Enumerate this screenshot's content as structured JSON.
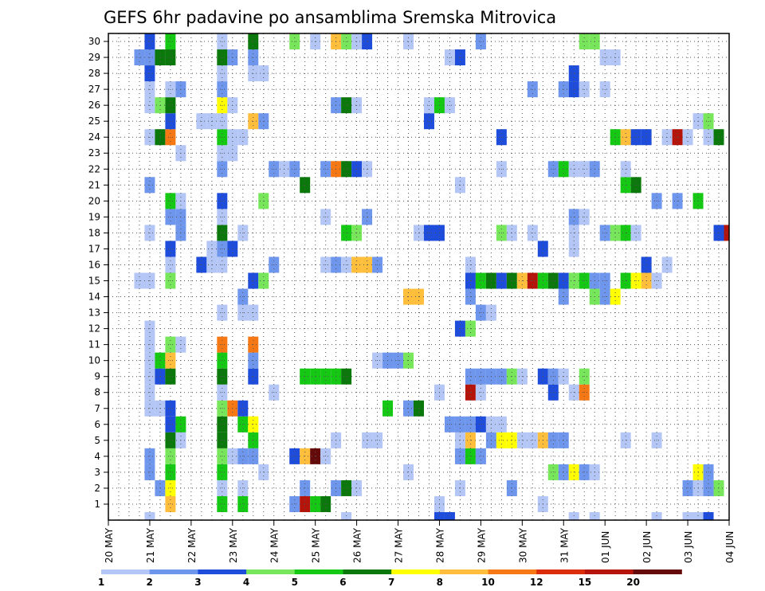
{
  "chart_data": {
    "type": "heatmap",
    "title": "GEFS 6hr padavine po ansamblima Sremska Mitrovica",
    "x_tick_labels": [
      "20 MAY",
      "21 MAY",
      "22 MAY",
      "23 MAY",
      "24 MAY",
      "25 MAY",
      "26 MAY",
      "27 MAY",
      "28 MAY",
      "29 MAY",
      "30 MAY",
      "31 MAY",
      "01 JUN",
      "02 JUN",
      "03 JUN",
      "04 JUN"
    ],
    "x_range_steps": [
      0,
      60
    ],
    "y_tick_labels": [
      1,
      2,
      3,
      4,
      5,
      6,
      7,
      8,
      9,
      10,
      11,
      12,
      13,
      14,
      15,
      16,
      17,
      18,
      19,
      20,
      21,
      22,
      23,
      24,
      25,
      26,
      27,
      28,
      29,
      30
    ],
    "y_range_members": [
      0,
      30
    ],
    "grid": true,
    "colorbar": {
      "levels": [
        1,
        2,
        3,
        4,
        5,
        6,
        7,
        8,
        10,
        12,
        15,
        20
      ],
      "labels": [
        "1",
        "2",
        "3",
        "4",
        "5",
        "6",
        "7",
        "8",
        "10",
        "12",
        "15",
        "20"
      ],
      "colors": [
        "#b4c6f5",
        "#6e96ed",
        "#1f4ddb",
        "#78e65a",
        "#14c814",
        "#0a780a",
        "#ffff00",
        "#ffbe3c",
        "#f57814",
        "#dc2d0a",
        "#b4140a",
        "#640a0a"
      ]
    },
    "cells": [
      [
        0,
        4,
        1
      ],
      [
        0,
        23,
        1
      ],
      [
        0,
        32,
        3
      ],
      [
        0,
        33,
        3
      ],
      [
        0,
        45,
        1
      ],
      [
        0,
        47,
        1
      ],
      [
        0,
        53,
        1
      ],
      [
        0,
        56,
        1
      ],
      [
        0,
        57,
        1
      ],
      [
        0,
        58,
        3
      ],
      [
        1,
        6,
        8
      ],
      [
        1,
        11,
        5
      ],
      [
        1,
        13,
        5
      ],
      [
        1,
        18,
        2
      ],
      [
        1,
        19,
        11
      ],
      [
        1,
        20,
        5
      ],
      [
        1,
        21,
        6
      ],
      [
        1,
        32,
        1
      ],
      [
        1,
        42,
        1
      ],
      [
        2,
        5,
        2
      ],
      [
        2,
        6,
        7
      ],
      [
        2,
        11,
        1
      ],
      [
        2,
        13,
        1
      ],
      [
        2,
        19,
        2
      ],
      [
        2,
        22,
        2
      ],
      [
        2,
        23,
        6
      ],
      [
        2,
        24,
        1
      ],
      [
        2,
        34,
        1
      ],
      [
        2,
        39,
        2
      ],
      [
        2,
        56,
        2
      ],
      [
        2,
        57,
        1
      ],
      [
        2,
        58,
        2
      ],
      [
        2,
        59,
        4
      ],
      [
        3,
        4,
        2
      ],
      [
        3,
        6,
        5
      ],
      [
        3,
        11,
        5
      ],
      [
        3,
        15,
        1
      ],
      [
        3,
        29,
        1
      ],
      [
        3,
        43,
        4
      ],
      [
        3,
        44,
        2
      ],
      [
        3,
        45,
        7
      ],
      [
        3,
        46,
        2
      ],
      [
        3,
        47,
        1
      ],
      [
        3,
        57,
        7
      ],
      [
        3,
        58,
        2
      ],
      [
        4,
        4,
        2
      ],
      [
        4,
        6,
        4
      ],
      [
        4,
        11,
        4
      ],
      [
        4,
        12,
        1
      ],
      [
        4,
        13,
        2
      ],
      [
        4,
        14,
        2
      ],
      [
        4,
        18,
        3
      ],
      [
        4,
        19,
        8
      ],
      [
        4,
        20,
        12
      ],
      [
        4,
        21,
        1
      ],
      [
        4,
        34,
        2
      ],
      [
        4,
        35,
        5
      ],
      [
        4,
        36,
        2
      ],
      [
        5,
        6,
        6
      ],
      [
        5,
        7,
        1
      ],
      [
        5,
        11,
        6
      ],
      [
        5,
        14,
        5
      ],
      [
        5,
        22,
        1
      ],
      [
        5,
        25,
        1
      ],
      [
        5,
        26,
        1
      ],
      [
        5,
        34,
        1
      ],
      [
        5,
        35,
        8
      ],
      [
        5,
        37,
        2
      ],
      [
        5,
        38,
        7
      ],
      [
        5,
        39,
        7
      ],
      [
        5,
        40,
        1
      ],
      [
        5,
        41,
        1
      ],
      [
        5,
        42,
        8
      ],
      [
        5,
        43,
        2
      ],
      [
        5,
        44,
        2
      ],
      [
        5,
        50,
        1
      ],
      [
        5,
        53,
        1
      ],
      [
        6,
        6,
        3
      ],
      [
        6,
        7,
        5
      ],
      [
        6,
        11,
        6
      ],
      [
        6,
        13,
        5
      ],
      [
        6,
        14,
        7
      ],
      [
        6,
        33,
        2
      ],
      [
        6,
        34,
        2
      ],
      [
        6,
        35,
        2
      ],
      [
        6,
        36,
        3
      ],
      [
        6,
        37,
        1
      ],
      [
        6,
        38,
        1
      ],
      [
        7,
        4,
        1
      ],
      [
        7,
        5,
        1
      ],
      [
        7,
        6,
        3
      ],
      [
        7,
        11,
        4
      ],
      [
        7,
        12,
        9
      ],
      [
        7,
        13,
        3
      ],
      [
        7,
        27,
        5
      ],
      [
        7,
        29,
        2
      ],
      [
        7,
        30,
        6
      ],
      [
        8,
        4,
        1
      ],
      [
        8,
        11,
        1
      ],
      [
        8,
        16,
        1
      ],
      [
        8,
        32,
        1
      ],
      [
        8,
        35,
        11
      ],
      [
        8,
        36,
        1
      ],
      [
        8,
        43,
        3
      ],
      [
        8,
        45,
        1
      ],
      [
        8,
        46,
        9
      ],
      [
        9,
        4,
        1
      ],
      [
        9,
        5,
        3
      ],
      [
        9,
        6,
        6
      ],
      [
        9,
        11,
        6
      ],
      [
        9,
        14,
        3
      ],
      [
        9,
        19,
        5
      ],
      [
        9,
        20,
        5
      ],
      [
        9,
        21,
        5
      ],
      [
        9,
        22,
        5
      ],
      [
        9,
        23,
        6
      ],
      [
        9,
        35,
        2
      ],
      [
        9,
        36,
        2
      ],
      [
        9,
        37,
        2
      ],
      [
        9,
        38,
        2
      ],
      [
        9,
        39,
        4
      ],
      [
        9,
        40,
        1
      ],
      [
        9,
        42,
        3
      ],
      [
        9,
        43,
        2
      ],
      [
        9,
        44,
        1
      ],
      [
        9,
        46,
        4
      ],
      [
        10,
        4,
        1
      ],
      [
        10,
        5,
        5
      ],
      [
        10,
        6,
        8
      ],
      [
        10,
        11,
        5
      ],
      [
        10,
        14,
        2
      ],
      [
        10,
        26,
        1
      ],
      [
        10,
        27,
        2
      ],
      [
        10,
        28,
        2
      ],
      [
        10,
        29,
        4
      ],
      [
        11,
        4,
        1
      ],
      [
        11,
        6,
        4
      ],
      [
        11,
        7,
        1
      ],
      [
        11,
        11,
        9
      ],
      [
        11,
        14,
        9
      ],
      [
        12,
        4,
        1
      ],
      [
        12,
        34,
        3
      ],
      [
        12,
        35,
        4
      ],
      [
        13,
        11,
        1
      ],
      [
        13,
        13,
        1
      ],
      [
        13,
        14,
        1
      ],
      [
        13,
        36,
        2
      ],
      [
        13,
        37,
        1
      ],
      [
        14,
        13,
        2
      ],
      [
        14,
        29,
        8
      ],
      [
        14,
        30,
        8
      ],
      [
        14,
        35,
        2
      ],
      [
        14,
        44,
        2
      ],
      [
        14,
        47,
        4
      ],
      [
        14,
        48,
        2
      ],
      [
        14,
        49,
        7
      ],
      [
        15,
        3,
        1
      ],
      [
        15,
        4,
        1
      ],
      [
        15,
        6,
        4
      ],
      [
        15,
        14,
        3
      ],
      [
        15,
        15,
        4
      ],
      [
        15,
        35,
        3
      ],
      [
        15,
        36,
        5
      ],
      [
        15,
        37,
        6
      ],
      [
        15,
        38,
        3
      ],
      [
        15,
        39,
        6
      ],
      [
        15,
        40,
        8
      ],
      [
        15,
        41,
        11
      ],
      [
        15,
        42,
        5
      ],
      [
        15,
        43,
        6
      ],
      [
        15,
        44,
        3
      ],
      [
        15,
        45,
        4
      ],
      [
        15,
        46,
        5
      ],
      [
        15,
        47,
        2
      ],
      [
        15,
        48,
        2
      ],
      [
        15,
        50,
        5
      ],
      [
        15,
        51,
        7
      ],
      [
        15,
        52,
        8
      ],
      [
        15,
        53,
        1
      ],
      [
        16,
        6,
        1
      ],
      [
        16,
        9,
        3
      ],
      [
        16,
        10,
        1
      ],
      [
        16,
        11,
        1
      ],
      [
        16,
        16,
        2
      ],
      [
        16,
        21,
        1
      ],
      [
        16,
        22,
        2
      ],
      [
        16,
        23,
        1
      ],
      [
        16,
        24,
        8
      ],
      [
        16,
        25,
        8
      ],
      [
        16,
        26,
        2
      ],
      [
        16,
        35,
        1
      ],
      [
        16,
        52,
        3
      ],
      [
        16,
        54,
        1
      ],
      [
        17,
        6,
        3
      ],
      [
        17,
        10,
        1
      ],
      [
        17,
        11,
        2
      ],
      [
        17,
        12,
        3
      ],
      [
        17,
        42,
        3
      ],
      [
        17,
        45,
        1
      ],
      [
        18,
        4,
        1
      ],
      [
        18,
        7,
        2
      ],
      [
        18,
        11,
        6
      ],
      [
        18,
        13,
        1
      ],
      [
        18,
        23,
        5
      ],
      [
        18,
        24,
        4
      ],
      [
        18,
        30,
        1
      ],
      [
        18,
        31,
        3
      ],
      [
        18,
        32,
        3
      ],
      [
        18,
        38,
        4
      ],
      [
        18,
        39,
        1
      ],
      [
        18,
        41,
        1
      ],
      [
        18,
        45,
        1
      ],
      [
        18,
        48,
        2
      ],
      [
        18,
        49,
        4
      ],
      [
        18,
        50,
        5
      ],
      [
        18,
        51,
        1
      ],
      [
        18,
        59,
        3
      ],
      [
        18,
        60,
        11
      ],
      [
        19,
        6,
        2
      ],
      [
        19,
        7,
        2
      ],
      [
        19,
        11,
        1
      ],
      [
        19,
        21,
        1
      ],
      [
        19,
        25,
        2
      ],
      [
        19,
        45,
        2
      ],
      [
        19,
        46,
        1
      ],
      [
        20,
        6,
        5
      ],
      [
        20,
        7,
        1
      ],
      [
        20,
        11,
        3
      ],
      [
        20,
        15,
        4
      ],
      [
        20,
        53,
        2
      ],
      [
        20,
        55,
        2
      ],
      [
        20,
        57,
        5
      ],
      [
        21,
        4,
        2
      ],
      [
        21,
        19,
        6
      ],
      [
        21,
        34,
        1
      ],
      [
        21,
        50,
        5
      ],
      [
        21,
        51,
        6
      ],
      [
        22,
        11,
        2
      ],
      [
        22,
        16,
        2
      ],
      [
        22,
        17,
        1
      ],
      [
        22,
        18,
        2
      ],
      [
        22,
        21,
        2
      ],
      [
        22,
        22,
        9
      ],
      [
        22,
        23,
        6
      ],
      [
        22,
        24,
        3
      ],
      [
        22,
        25,
        1
      ],
      [
        22,
        38,
        1
      ],
      [
        22,
        43,
        2
      ],
      [
        22,
        44,
        5
      ],
      [
        22,
        45,
        1
      ],
      [
        22,
        46,
        1
      ],
      [
        22,
        47,
        2
      ],
      [
        22,
        50,
        1
      ],
      [
        23,
        7,
        1
      ],
      [
        23,
        11,
        1
      ],
      [
        23,
        12,
        1
      ],
      [
        24,
        4,
        1
      ],
      [
        24,
        5,
        6
      ],
      [
        24,
        6,
        9
      ],
      [
        24,
        11,
        5
      ],
      [
        24,
        12,
        1
      ],
      [
        24,
        13,
        1
      ],
      [
        24,
        38,
        3
      ],
      [
        24,
        49,
        5
      ],
      [
        24,
        50,
        8
      ],
      [
        24,
        51,
        3
      ],
      [
        24,
        52,
        3
      ],
      [
        24,
        54,
        1
      ],
      [
        24,
        55,
        11
      ],
      [
        24,
        56,
        1
      ],
      [
        24,
        58,
        1
      ],
      [
        24,
        59,
        6
      ],
      [
        25,
        6,
        3
      ],
      [
        25,
        9,
        1
      ],
      [
        25,
        10,
        1
      ],
      [
        25,
        11,
        1
      ],
      [
        25,
        14,
        8
      ],
      [
        25,
        15,
        2
      ],
      [
        25,
        31,
        3
      ],
      [
        25,
        57,
        1
      ],
      [
        25,
        58,
        4
      ],
      [
        26,
        4,
        1
      ],
      [
        26,
        5,
        4
      ],
      [
        26,
        6,
        6
      ],
      [
        26,
        11,
        7
      ],
      [
        26,
        12,
        1
      ],
      [
        26,
        22,
        2
      ],
      [
        26,
        23,
        6
      ],
      [
        26,
        24,
        1
      ],
      [
        26,
        31,
        1
      ],
      [
        26,
        32,
        5
      ],
      [
        26,
        33,
        1
      ],
      [
        27,
        4,
        1
      ],
      [
        27,
        6,
        1
      ],
      [
        27,
        7,
        2
      ],
      [
        27,
        11,
        2
      ],
      [
        27,
        41,
        2
      ],
      [
        27,
        44,
        2
      ],
      [
        27,
        45,
        3
      ],
      [
        27,
        46,
        1
      ],
      [
        27,
        48,
        1
      ],
      [
        28,
        4,
        3
      ],
      [
        28,
        11,
        1
      ],
      [
        28,
        14,
        1
      ],
      [
        28,
        15,
        1
      ],
      [
        28,
        45,
        3
      ],
      [
        29,
        3,
        2
      ],
      [
        29,
        4,
        2
      ],
      [
        29,
        5,
        6
      ],
      [
        29,
        6,
        6
      ],
      [
        29,
        11,
        6
      ],
      [
        29,
        12,
        2
      ],
      [
        29,
        14,
        2
      ],
      [
        29,
        33,
        1
      ],
      [
        29,
        34,
        3
      ],
      [
        29,
        48,
        1
      ],
      [
        29,
        49,
        1
      ],
      [
        30,
        4,
        3
      ],
      [
        30,
        6,
        5
      ],
      [
        30,
        11,
        1
      ],
      [
        30,
        14,
        6
      ],
      [
        30,
        18,
        4
      ],
      [
        30,
        20,
        1
      ],
      [
        30,
        22,
        8
      ],
      [
        30,
        23,
        4
      ],
      [
        30,
        24,
        1
      ],
      [
        30,
        25,
        3
      ],
      [
        30,
        29,
        1
      ],
      [
        30,
        36,
        2
      ],
      [
        30,
        46,
        4
      ],
      [
        30,
        47,
        4
      ]
    ]
  }
}
